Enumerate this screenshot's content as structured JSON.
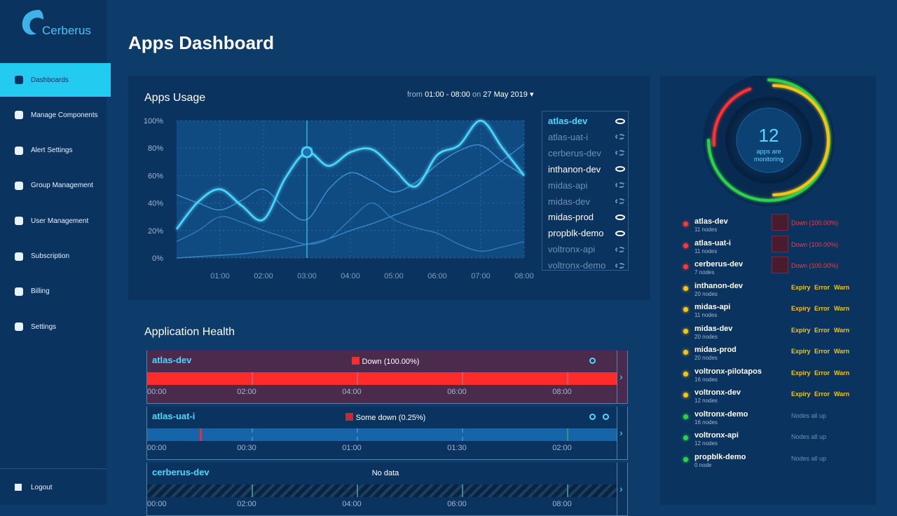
{
  "brand": "Cerberus",
  "nav": {
    "items": [
      "Dashboards",
      "Manage Components",
      "Alert Settings",
      "Group Management",
      "User Management",
      "Subscription",
      "Billing",
      "Settings"
    ],
    "active": 0,
    "logout": "Logout"
  },
  "header": {
    "title": "Apps Dashboard"
  },
  "usage": {
    "title": "Apps Usage",
    "range": {
      "from": "from",
      "time": "01:00 - 08:00",
      "on": "on",
      "date": "27 May 2019"
    }
  },
  "chart_data": {
    "type": "line",
    "x": [
      0,
      0.5,
      1,
      1.5,
      2,
      2.5,
      3,
      3.5,
      4,
      4.5,
      5,
      5.5,
      6,
      6.5,
      7,
      7.5,
      8
    ],
    "xlim": [
      0,
      8
    ],
    "xticks": [
      {
        "value": 1,
        "label": "01:00"
      },
      {
        "value": 2,
        "label": "02:00"
      },
      {
        "value": 3,
        "label": "03:00"
      },
      {
        "value": 4,
        "label": "04:00"
      },
      {
        "value": 5,
        "label": "05:00"
      },
      {
        "value": 6,
        "label": "06:00"
      },
      {
        "value": 7,
        "label": "07:00"
      },
      {
        "value": 8,
        "label": "08:00"
      }
    ],
    "ylim": [
      0,
      100
    ],
    "yticks": [
      {
        "value": 0,
        "label": "0%"
      },
      {
        "value": 20,
        "label": "20%"
      },
      {
        "value": 40,
        "label": "40%"
      },
      {
        "value": 60,
        "label": "60%"
      },
      {
        "value": 80,
        "label": "80%"
      },
      {
        "value": 100,
        "label": "100%"
      }
    ],
    "grid": true,
    "cursor_x": 3,
    "series": [
      {
        "name": "atlas-dev",
        "color": "#4fd8ff",
        "values": [
          21,
          41,
          50,
          38,
          28,
          58,
          77,
          67,
          77,
          79,
          65,
          52,
          75,
          82,
          100,
          80,
          60
        ]
      },
      {
        "name": "inthanon-dev",
        "color": "#3a8fd0",
        "values": [
          46,
          40,
          35,
          42,
          50,
          36,
          28,
          50,
          62,
          56,
          48,
          55,
          68,
          78,
          82,
          70,
          60
        ]
      },
      {
        "name": "midas-prod",
        "color": "#2f78b8",
        "values": [
          12,
          20,
          30,
          26,
          20,
          15,
          10,
          14,
          28,
          40,
          28,
          22,
          18,
          10,
          5,
          8,
          12
        ]
      },
      {
        "name": "propblk-demo",
        "color": "#3585c6",
        "values": [
          0,
          1,
          2,
          3,
          5,
          7,
          10,
          14,
          20,
          25,
          31,
          37,
          44,
          52,
          61,
          71,
          83
        ]
      }
    ],
    "legend": [
      {
        "name": "atlas-dev",
        "visible": true
      },
      {
        "name": "atlas-uat-i",
        "visible": false
      },
      {
        "name": "cerberus-dev",
        "visible": false
      },
      {
        "name": "inthanon-dev",
        "visible": true
      },
      {
        "name": "midas-api",
        "visible": false
      },
      {
        "name": "midas-dev",
        "visible": false
      },
      {
        "name": "midas-prod",
        "visible": true
      },
      {
        "name": "propblk-demo",
        "visible": true
      },
      {
        "name": "voltronx-api",
        "visible": false
      },
      {
        "name": "voltronx-demo",
        "visible": false
      }
    ]
  },
  "health": {
    "title": "Application Health",
    "panels": [
      {
        "name": "atlas-dev",
        "status": "Down (100.00%)",
        "state": "down",
        "ticks": [
          "00:00",
          "02:00",
          "04:00",
          "06:00",
          "08:00"
        ]
      },
      {
        "name": "atlas-uat-i",
        "status": "Some down (0.25%)",
        "state": "partial",
        "ticks": [
          "00:00",
          "00:30",
          "01:00",
          "01:30",
          "02:00"
        ]
      },
      {
        "name": "cerberus-dev",
        "status": "No data",
        "state": "none",
        "ticks": [
          "00:00",
          "02:00",
          "04:00",
          "06:00",
          "08:00"
        ]
      }
    ]
  },
  "monitor": {
    "count": "12",
    "caption": "apps are monitoring",
    "apps": [
      {
        "name": "atlas-dev",
        "nodes": "11 nodes",
        "alert": "Down (100.00%)"
      },
      {
        "name": "atlas-uat-i",
        "nodes": "11 nodes",
        "alert": "Down (100.00%)"
      },
      {
        "name": "cerberus-dev",
        "nodes": "7 nodes",
        "alert": "Down (100.00%)"
      },
      {
        "name": "inthanon-dev",
        "nodes": "20 nodes",
        "tags": [
          "Expiry",
          "Error",
          "Warn"
        ]
      },
      {
        "name": "midas-api",
        "nodes": "11 nodes",
        "tags": [
          "Expiry",
          "Error",
          "Warn"
        ]
      },
      {
        "name": "midas-dev",
        "nodes": "20 nodes",
        "tags": [
          "Expiry",
          "Error",
          "Warn"
        ]
      },
      {
        "name": "midas-prod",
        "nodes": "20 nodes",
        "tags": [
          "Expiry",
          "Error",
          "Warn"
        ]
      },
      {
        "name": "voltronx-pilotapos",
        "nodes": "16 nodes",
        "tags": [
          "Expiry",
          "Error",
          "Warn"
        ]
      },
      {
        "name": "voltronx-dev",
        "nodes": "12 nodes",
        "tags": [
          "Expiry",
          "Error",
          "Warn"
        ]
      },
      {
        "name": "voltronx-demo",
        "nodes": "16 nodes",
        "note": "Nodes all up"
      },
      {
        "name": "voltronx-api",
        "nodes": "12 nodes",
        "note": "Nodes all up"
      },
      {
        "name": "propblk-demo",
        "nodes": "0 node",
        "note": "Nodes all up"
      }
    ]
  }
}
